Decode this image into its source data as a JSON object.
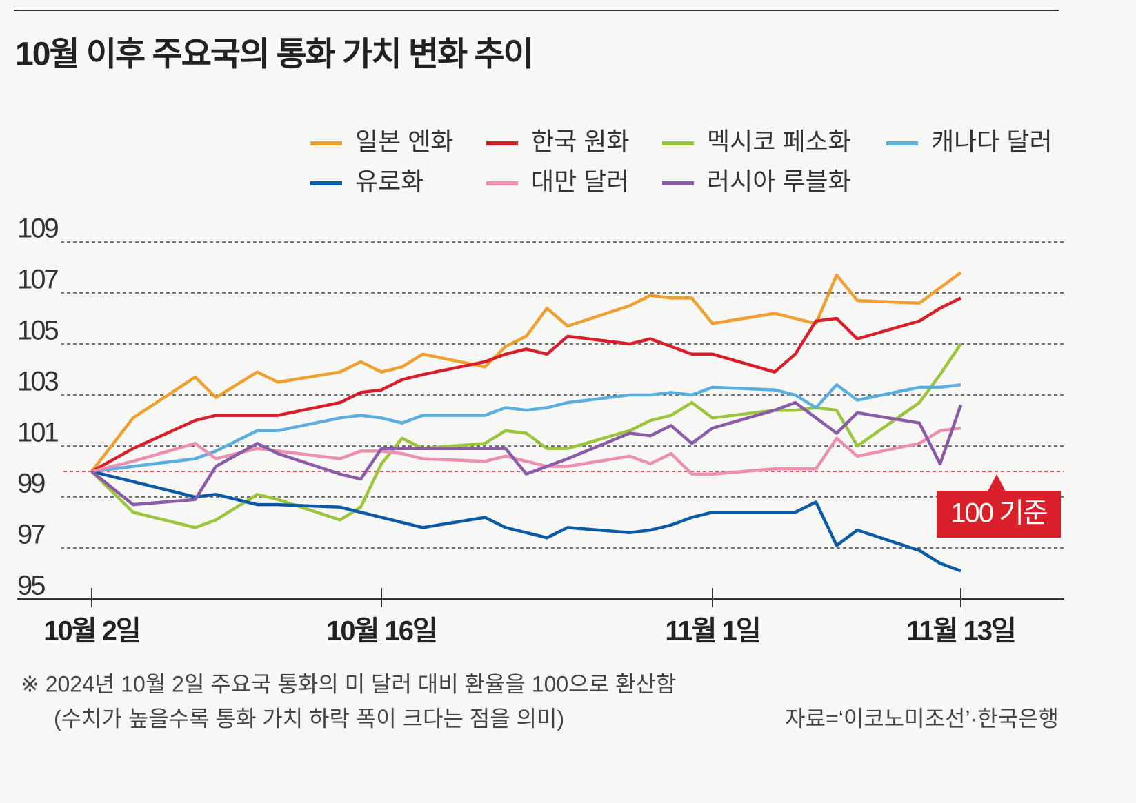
{
  "chart_data": {
    "type": "line",
    "title": "10월 이후 주요국의 통화 가치 변화 추이",
    "x": [
      "2024-10-02",
      "2024-10-04",
      "2024-10-07",
      "2024-10-08",
      "2024-10-10",
      "2024-10-11",
      "2024-10-14",
      "2024-10-15",
      "2024-10-16",
      "2024-10-17",
      "2024-10-18",
      "2024-10-21",
      "2024-10-22",
      "2024-10-23",
      "2024-10-24",
      "2024-10-25",
      "2024-10-28",
      "2024-10-29",
      "2024-10-30",
      "2024-10-31",
      "2024-11-01",
      "2024-11-04",
      "2024-11-05",
      "2024-11-06",
      "2024-11-07",
      "2024-11-08",
      "2024-11-11",
      "2024-11-12",
      "2024-11-13"
    ],
    "xlim": [
      "2024-10-01",
      "2024-11-18"
    ],
    "xticks": [
      {
        "value": "2024-10-02",
        "label": "10월 2일"
      },
      {
        "value": "2024-10-16",
        "label": "10월 16일"
      },
      {
        "value": "2024-11-01",
        "label": "11월 1일"
      },
      {
        "value": "2024-11-13",
        "label": "11월 13일"
      }
    ],
    "ylim": [
      95,
      110
    ],
    "yticks": [
      95,
      97,
      99,
      101,
      103,
      105,
      107,
      109
    ],
    "grid": true,
    "reference": {
      "value": 100,
      "label": "100 기준",
      "color": "#d9202a"
    },
    "series": [
      {
        "name": "일본 엔화",
        "color": "#f0a030",
        "values": [
          100,
          102.1,
          103.7,
          102.9,
          103.9,
          103.5,
          103.9,
          104.3,
          103.9,
          104.1,
          104.6,
          104.1,
          104.9,
          105.3,
          106.4,
          105.7,
          106.5,
          106.9,
          106.8,
          106.8,
          105.8,
          106.2,
          106.0,
          105.8,
          107.7,
          106.7,
          106.6,
          107.2,
          107.8
        ]
      },
      {
        "name": "한국 원화",
        "color": "#d9202a",
        "values": [
          100,
          100.9,
          102.0,
          102.2,
          102.2,
          102.2,
          102.7,
          103.1,
          103.2,
          103.6,
          103.8,
          104.3,
          104.6,
          104.8,
          104.6,
          105.3,
          105.0,
          105.2,
          104.9,
          104.6,
          104.6,
          103.9,
          104.6,
          105.9,
          106.0,
          105.2,
          105.9,
          106.4,
          106.8
        ]
      },
      {
        "name": "멕시코 페소화",
        "color": "#9bc53d",
        "values": [
          100,
          98.4,
          97.8,
          98.1,
          99.1,
          98.9,
          98.1,
          98.6,
          100.3,
          101.3,
          100.9,
          101.1,
          101.6,
          101.5,
          100.9,
          100.9,
          101.6,
          102.0,
          102.2,
          102.7,
          102.1,
          102.4,
          102.4,
          102.5,
          102.4,
          101.0,
          102.7,
          103.8,
          105.0
        ]
      },
      {
        "name": "캐나다 달러",
        "color": "#5aafe0",
        "values": [
          100,
          100.2,
          100.5,
          100.8,
          101.6,
          101.6,
          102.1,
          102.2,
          102.1,
          101.9,
          102.2,
          102.2,
          102.5,
          102.4,
          102.5,
          102.7,
          103.0,
          103.0,
          103.1,
          103.0,
          103.3,
          103.2,
          103.0,
          102.5,
          103.4,
          102.8,
          103.3,
          103.3,
          103.4
        ]
      },
      {
        "name": "유로화",
        "color": "#0b5aa5",
        "values": [
          100,
          99.6,
          99.0,
          99.1,
          98.7,
          98.7,
          98.6,
          98.4,
          98.2,
          98.0,
          97.8,
          98.2,
          97.8,
          97.6,
          97.4,
          97.8,
          97.6,
          97.7,
          97.9,
          98.2,
          98.4,
          98.4,
          98.4,
          98.8,
          97.1,
          97.7,
          96.9,
          96.4,
          96.1
        ]
      },
      {
        "name": "대만 달러",
        "color": "#ec8fb0",
        "values": [
          100,
          100.4,
          101.1,
          100.5,
          100.9,
          100.8,
          100.5,
          100.8,
          100.8,
          100.7,
          100.5,
          100.4,
          100.6,
          100.4,
          100.2,
          100.2,
          100.6,
          100.3,
          100.7,
          99.9,
          99.9,
          100.1,
          100.1,
          100.1,
          101.3,
          100.6,
          101.1,
          101.6,
          101.7
        ]
      },
      {
        "name": "러시아 루블화",
        "color": "#8a5ba8",
        "values": [
          100,
          98.7,
          98.9,
          100.2,
          101.1,
          100.7,
          99.9,
          99.7,
          100.9,
          100.9,
          100.9,
          100.9,
          100.9,
          99.9,
          100.2,
          100.5,
          101.5,
          101.4,
          101.8,
          101.1,
          101.7,
          102.4,
          102.7,
          102.1,
          101.5,
          102.3,
          101.9,
          100.3,
          102.6
        ]
      }
    ],
    "note": "※ 2024년 10월 2일 주요국 통화의 미 달러 대비 환율을 100으로 환산함",
    "note2": "(수치가 높을수록 통화 가치 하락 폭이 크다는 점을 의미)",
    "source": "자료=‘이코노미조선’·한국은행"
  }
}
